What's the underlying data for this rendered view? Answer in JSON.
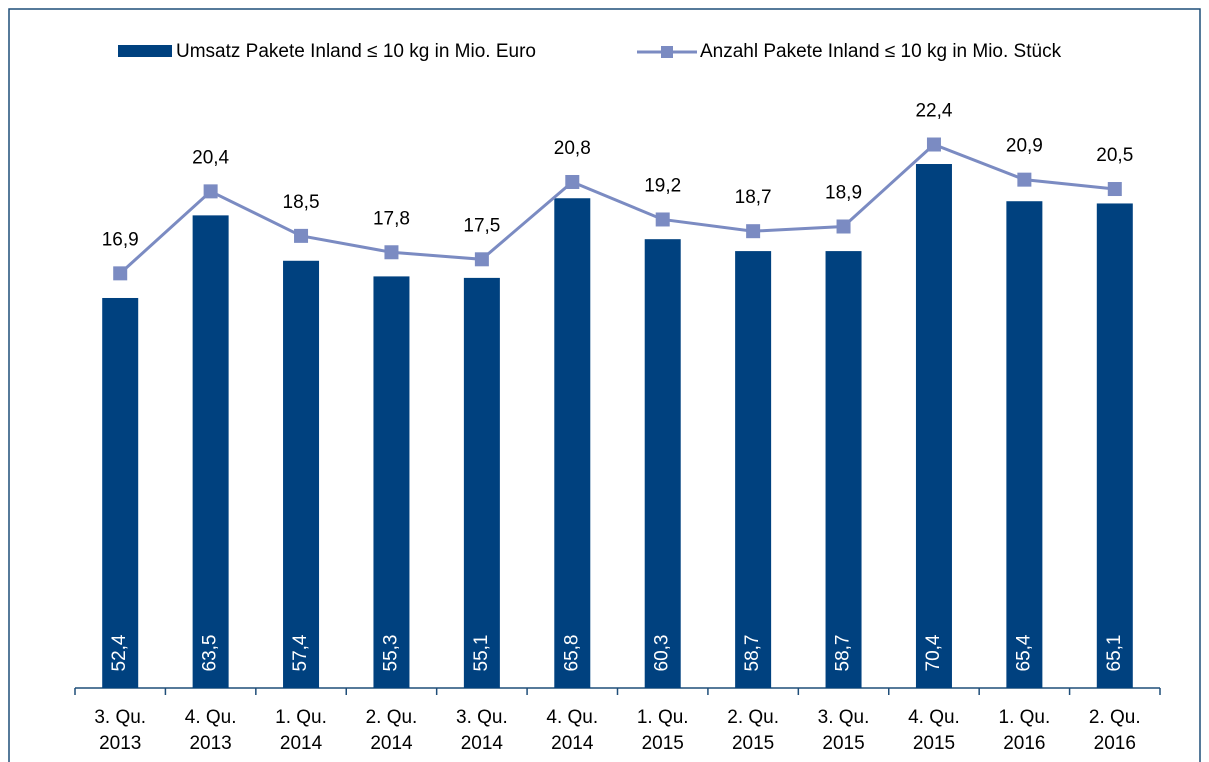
{
  "chart_data": {
    "type": "bar_line",
    "categories": [
      [
        "3. Qu.",
        "2013"
      ],
      [
        "4. Qu.",
        "2013"
      ],
      [
        "1. Qu.",
        "2014"
      ],
      [
        "2. Qu.",
        "2014"
      ],
      [
        "3. Qu.",
        "2014"
      ],
      [
        "4. Qu.",
        "2014"
      ],
      [
        "1. Qu.",
        "2015"
      ],
      [
        "2. Qu.",
        "2015"
      ],
      [
        "3. Qu.",
        "2015"
      ],
      [
        "4. Qu.",
        "2015"
      ],
      [
        "1. Qu.",
        "2016"
      ],
      [
        "2. Qu.",
        "2016"
      ]
    ],
    "series": [
      {
        "name": "Umsatz Pakete Inland ≤ 10 kg in Mio. Euro",
        "type": "bar",
        "color": "#00417f",
        "values": [
          52.4,
          63.5,
          57.4,
          55.3,
          55.1,
          65.8,
          60.3,
          58.7,
          58.7,
          70.4,
          65.4,
          65.1
        ],
        "value_labels": [
          "52,4",
          "63,5",
          "57,4",
          "55,3",
          "55,1",
          "65,8",
          "60,3",
          "58,7",
          "58,7",
          "70,4",
          "65,4",
          "65,1"
        ]
      },
      {
        "name": "Anzahl Pakete Inland ≤ 10 kg  in Mio. Stück",
        "type": "line",
        "axis": "y2",
        "color": "#7b8bc2",
        "values": [
          16.9,
          20.4,
          18.5,
          17.8,
          17.5,
          20.8,
          19.2,
          18.7,
          18.9,
          22.4,
          20.9,
          20.5
        ],
        "value_labels": [
          "16,9",
          "20,4",
          "18,5",
          "17,8",
          "17,5",
          "20,8",
          "19,2",
          "18,7",
          "18,9",
          "22,4",
          "20,9",
          "20,5"
        ]
      }
    ],
    "ylim": [
      0,
      79
    ],
    "y2lim": [
      -0.8,
      24.3
    ],
    "legend": "top"
  }
}
